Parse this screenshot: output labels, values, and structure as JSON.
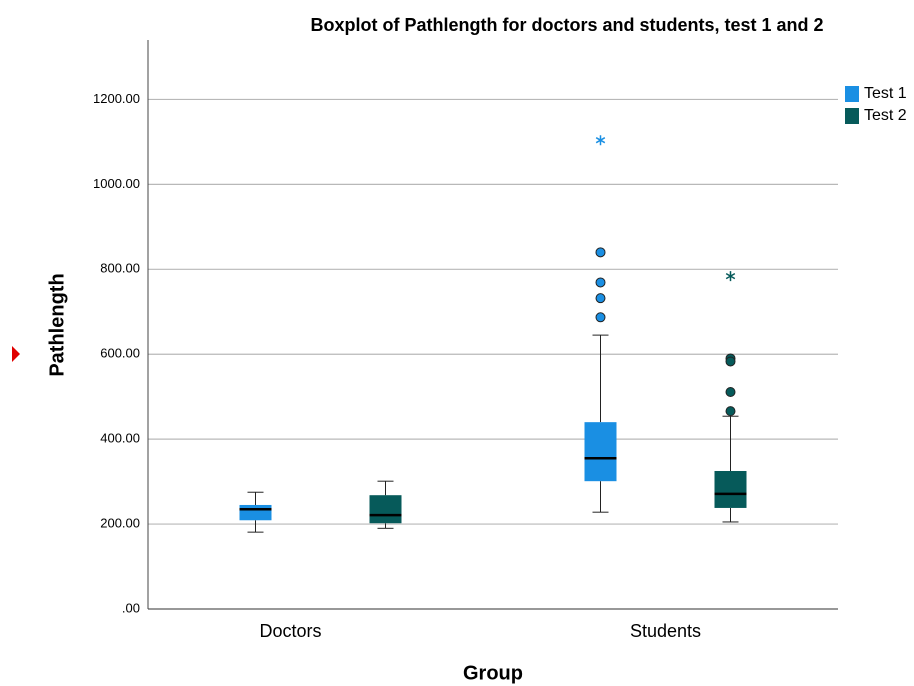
{
  "chart_data": {
    "type": "box",
    "title": "Boxplot of Pathlength for doctors and students, test 1 and 2",
    "xlabel": "Group",
    "ylabel": "Pathlength",
    "categories": [
      "Doctors",
      "Students"
    ],
    "ylim": [
      0,
      1340
    ],
    "yticks": [
      {
        "value": 0,
        "label": ".00"
      },
      {
        "value": 200,
        "label": "200.00"
      },
      {
        "value": 400,
        "label": "400.00"
      },
      {
        "value": 600,
        "label": "600.00"
      },
      {
        "value": 800,
        "label": "800.00"
      },
      {
        "value": 1000,
        "label": "1000.00"
      },
      {
        "value": 1200,
        "label": "1200.00"
      }
    ],
    "grid": true,
    "legend": "right",
    "series": [
      {
        "name": "Test 1",
        "color": "#1a8fe3",
        "boxes": [
          {
            "min": 181,
            "q1": 209,
            "median": 235,
            "q3": 245,
            "max": 275,
            "outliers": [],
            "extremes": []
          },
          {
            "min": 228,
            "q1": 301,
            "median": 355,
            "q3": 440,
            "max": 645,
            "outliers": [
              840,
              769,
              732,
              687
            ],
            "extremes": [
              1104
            ]
          }
        ]
      },
      {
        "name": "Test 2",
        "color": "#065a5a",
        "boxes": [
          {
            "min": 190,
            "q1": 202,
            "median": 221,
            "q3": 268,
            "max": 301,
            "outliers": [],
            "extremes": []
          },
          {
            "min": 205,
            "q1": 238,
            "median": 271,
            "q3": 325,
            "max": 454,
            "outliers": [
              590,
              583,
              511,
              466
            ],
            "extremes": [
              784
            ]
          }
        ]
      }
    ]
  }
}
